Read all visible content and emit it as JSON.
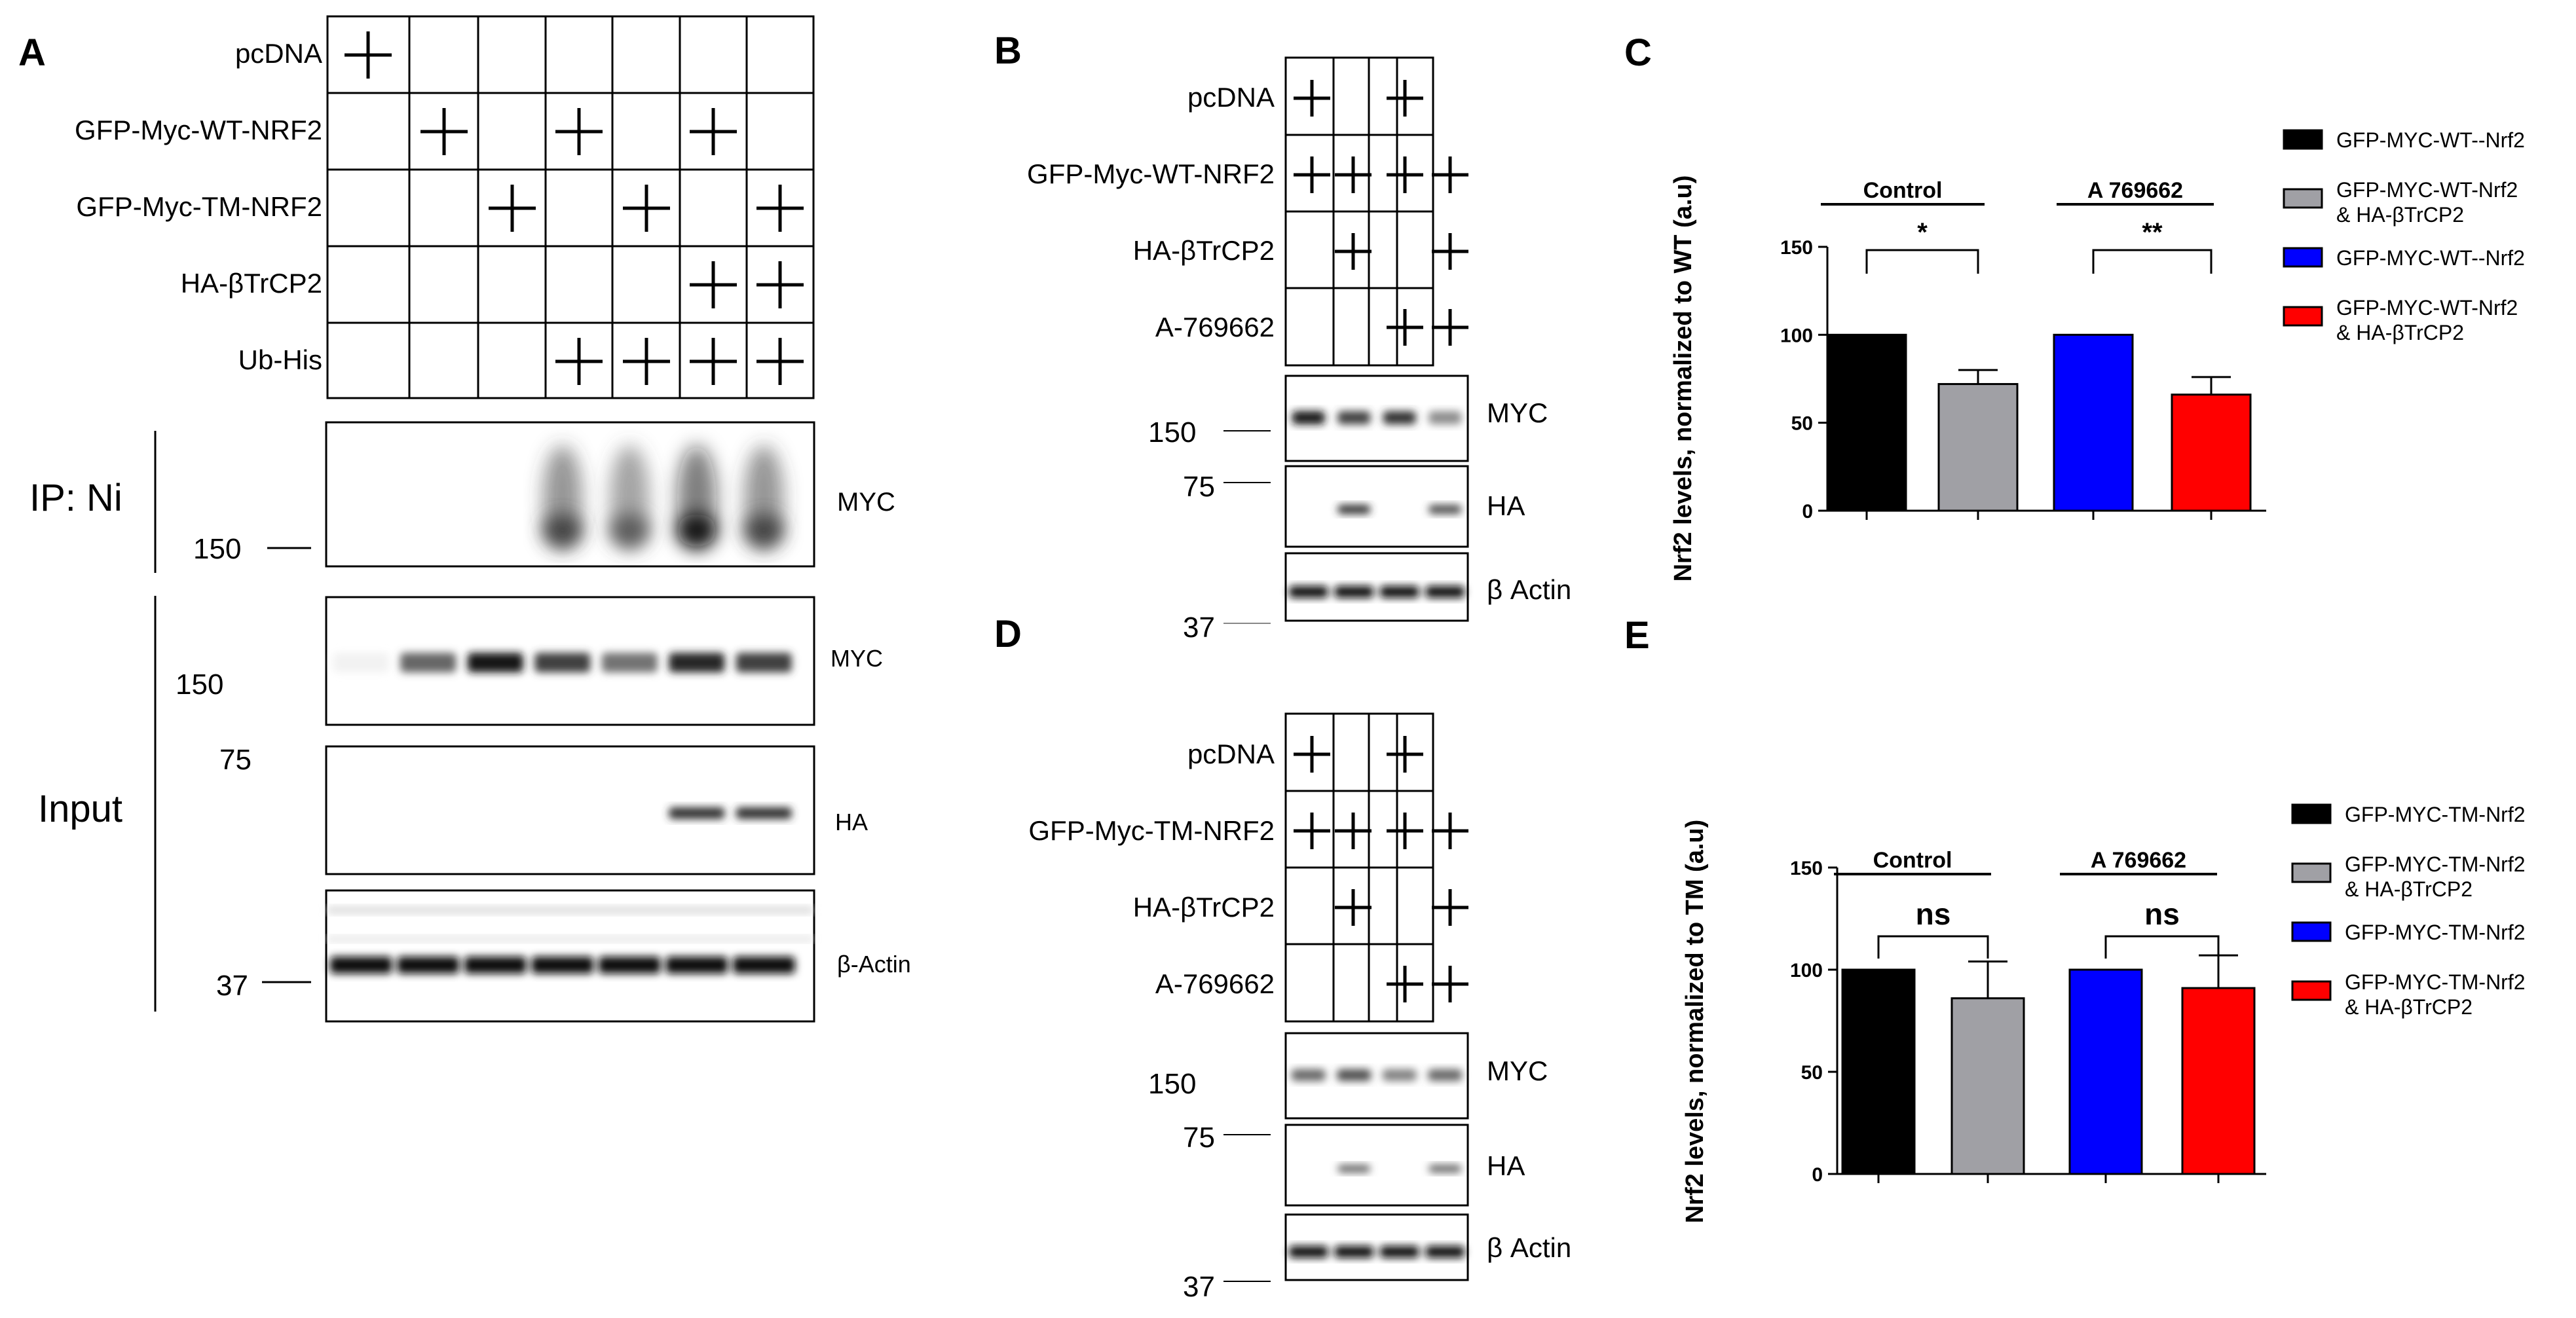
{
  "panels": {
    "A": {
      "letter": "A",
      "rows": [
        {
          "label": "pcDNA",
          "marks": [
            1,
            0,
            0,
            0,
            0,
            0,
            0
          ]
        },
        {
          "label": "GFP-Myc-WT-NRF2",
          "marks": [
            0,
            1,
            0,
            1,
            0,
            1,
            0
          ]
        },
        {
          "label": "GFP-Myc-TM-NRF2",
          "marks": [
            0,
            0,
            1,
            0,
            1,
            0,
            1
          ]
        },
        {
          "label": "HA-βTrCP2",
          "marks": [
            0,
            0,
            0,
            0,
            0,
            1,
            1
          ]
        },
        {
          "label": "Ub-His",
          "marks": [
            0,
            0,
            0,
            1,
            1,
            1,
            1
          ]
        }
      ],
      "ip_label": "IP: Ni",
      "input_label": "Input",
      "blots": {
        "ip_myc": {
          "label": "MYC",
          "marker": "150"
        },
        "input_myc": {
          "label": "MYC",
          "marker": "150"
        },
        "input_ha": {
          "label": "HA",
          "marker": "75"
        },
        "input_actin": {
          "label": "β-Actin",
          "marker": "37"
        }
      }
    },
    "B": {
      "letter": "B",
      "rows": [
        {
          "label": "pcDNA",
          "marks": [
            1,
            0,
            1,
            0
          ]
        },
        {
          "label": "GFP-Myc-WT-NRF2",
          "marks": [
            1,
            1,
            1,
            1
          ]
        },
        {
          "label": "HA-βTrCP2",
          "marks": [
            0,
            1,
            0,
            1
          ]
        },
        {
          "label": "A-769662",
          "marks": [
            0,
            0,
            1,
            1
          ]
        }
      ],
      "blots": {
        "myc": "MYC",
        "ha": "HA",
        "actin": "β Actin"
      },
      "markers": {
        "m150": "150",
        "m75": "75",
        "m37": "37"
      }
    },
    "D": {
      "letter": "D",
      "rows": [
        {
          "label": "pcDNA",
          "marks": [
            1,
            0,
            1,
            0
          ]
        },
        {
          "label": "GFP-Myc-TM-NRF2",
          "marks": [
            1,
            1,
            1,
            1
          ]
        },
        {
          "label": "HA-βTrCP2",
          "marks": [
            0,
            1,
            0,
            1
          ]
        },
        {
          "label": "A-769662",
          "marks": [
            0,
            0,
            1,
            1
          ]
        }
      ],
      "blots": {
        "myc": "MYC",
        "ha": "HA",
        "actin": "β Actin"
      },
      "markers": {
        "m150": "150",
        "m75": "75",
        "m37": "37"
      }
    },
    "C": {
      "letter": "C"
    },
    "E": {
      "letter": "E"
    }
  },
  "chart_data": [
    {
      "panel": "C",
      "type": "bar",
      "ylabel": "Nrf2 levels, normalized to WT (a.u)",
      "ylim": [
        0,
        150
      ],
      "yticks": [
        0,
        50,
        100,
        150
      ],
      "groups": [
        {
          "label": "Control",
          "significance": "*"
        },
        {
          "label": "A 769662",
          "significance": "**"
        }
      ],
      "bars": [
        {
          "value": 100,
          "error": 0,
          "color": "#000000"
        },
        {
          "value": 72,
          "error": 8,
          "color": "#a0a0a5"
        },
        {
          "value": 100,
          "error": 0,
          "color": "#0000ff"
        },
        {
          "value": 66,
          "error": 10,
          "color": "#ff0000"
        }
      ],
      "legend": [
        {
          "label": "GFP-MYC-WT--Nrf2",
          "color": "#000000"
        },
        {
          "label": "GFP-MYC-WT-Nrf2 & HA-βTrCP2",
          "color": "#a0a0a5"
        },
        {
          "label": "GFP-MYC-WT--Nrf2",
          "color": "#0000ff"
        },
        {
          "label": "GFP-MYC-WT-Nrf2 & HA-βTrCP2",
          "color": "#ff0000"
        }
      ]
    },
    {
      "panel": "E",
      "type": "bar",
      "ylabel": "Nrf2 levels, normalized to TM (a.u)",
      "ylim": [
        0,
        150
      ],
      "yticks": [
        0,
        50,
        100,
        150
      ],
      "groups": [
        {
          "label": "Control",
          "significance": "ns"
        },
        {
          "label": "A 769662",
          "significance": "ns"
        }
      ],
      "bars": [
        {
          "value": 100,
          "error": 0,
          "color": "#000000"
        },
        {
          "value": 86,
          "error": 18,
          "color": "#a0a0a5"
        },
        {
          "value": 100,
          "error": 0,
          "color": "#0000ff"
        },
        {
          "value": 91,
          "error": 16,
          "color": "#ff0000"
        }
      ],
      "legend": [
        {
          "label": "GFP-MYC-TM-Nrf2",
          "color": "#000000"
        },
        {
          "label": "GFP-MYC-TM-Nrf2 & HA-βTrCP2",
          "color": "#a0a0a5"
        },
        {
          "label": "GFP-MYC-TM-Nrf2",
          "color": "#0000ff"
        },
        {
          "label": "GFP-MYC-TM-Nrf2 & HA-βTrCP2",
          "color": "#ff0000"
        }
      ]
    }
  ],
  "blot_intensity": {
    "A_ip_myc": [
      0,
      0,
      0,
      0.75,
      0.65,
      0.95,
      0.75
    ],
    "A_input_myc": [
      0.05,
      0.6,
      0.9,
      0.75,
      0.55,
      0.85,
      0.75
    ],
    "A_input_ha": [
      0,
      0,
      0,
      0,
      0,
      0.8,
      0.8
    ],
    "A_input_actin": [
      0.95,
      0.95,
      0.95,
      0.95,
      0.95,
      0.95,
      0.95
    ],
    "B_myc": [
      0.9,
      0.75,
      0.8,
      0.45
    ],
    "B_ha": [
      0,
      0.8,
      0,
      0.7
    ],
    "B_actin": [
      0.95,
      0.95,
      0.95,
      0.95
    ],
    "D_myc": [
      0.6,
      0.7,
      0.5,
      0.6
    ],
    "D_ha": [
      0,
      0.6,
      0,
      0.6
    ],
    "D_actin": [
      0.95,
      0.95,
      0.95,
      0.95
    ]
  }
}
